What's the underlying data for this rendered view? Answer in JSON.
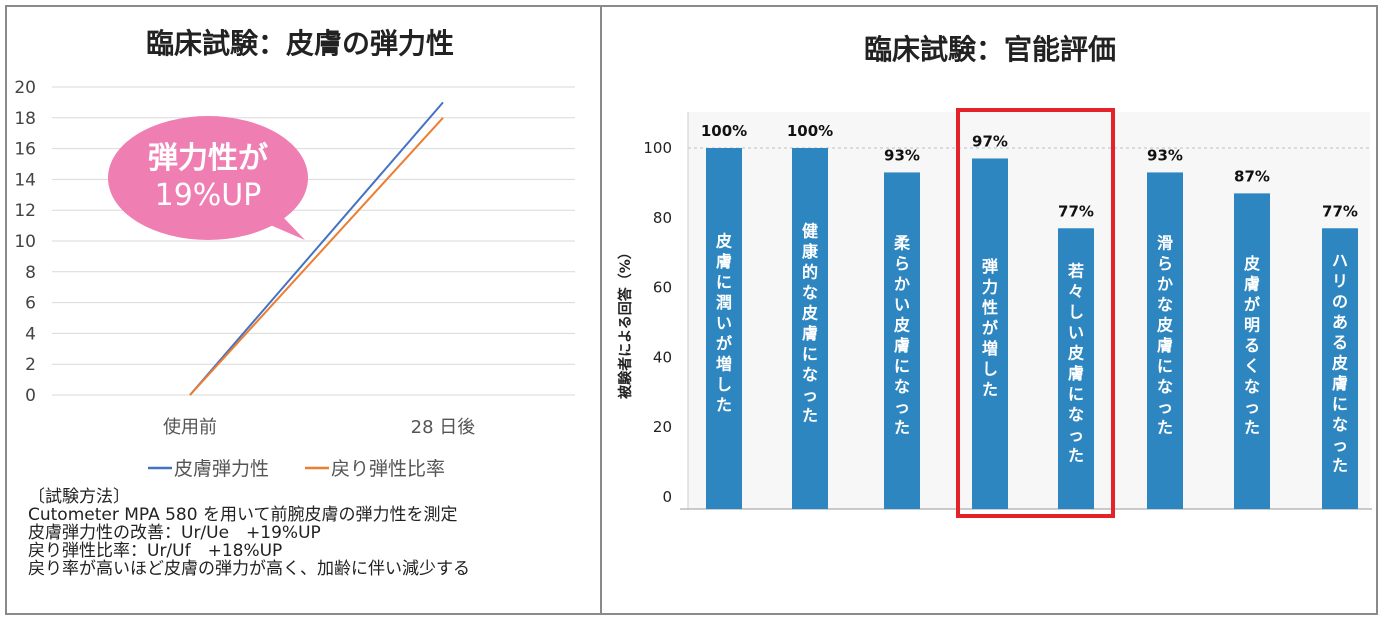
{
  "left_panel": {
    "title": "臨床試験：皮膚の弾力性",
    "callout": {
      "line1": "弾力性が",
      "line2": "19%UP",
      "color": "#ef7fb2"
    },
    "method": {
      "heading": "〔試験方法〕",
      "lines": [
        "Cutometer MPA 580 を用いて前腕皮膚の弾力性を測定",
        "皮膚弾力性の改善：Ur/Ue　+19%UP",
        "戻り弾性比率：Ur/Uf　+18%UP",
        "戻り率が高いほど皮膚の弾力が高く、加齢に伴い減少する"
      ]
    }
  },
  "right_panel": {
    "title": "臨床試験：官能評価",
    "highlight_color": "#e32229"
  },
  "chart_data": [
    {
      "type": "line",
      "categories": [
        "使用前",
        "28 日後"
      ],
      "series": [
        {
          "name": "皮膚弾力性",
          "values": [
            0,
            19
          ],
          "color": "#4472c4"
        },
        {
          "name": "戻り弾性比率",
          "values": [
            0,
            18
          ],
          "color": "#ed7d31"
        }
      ],
      "ylim": [
        0,
        20
      ],
      "yticks": [
        0,
        2,
        4,
        6,
        8,
        10,
        12,
        14,
        16,
        18,
        20
      ],
      "grid": true,
      "legend": "bottom"
    },
    {
      "type": "bar",
      "ylabel": "被験者による回答（%）",
      "ylim": [
        0,
        100
      ],
      "yticks": [
        0,
        20,
        40,
        60,
        80,
        100
      ],
      "bar_color": "#2e86c1",
      "categories": [
        "皮膚に潤いが増した",
        "健康的な皮膚になった",
        "柔らかい皮膚になった",
        "弾力性が増した",
        "若々しい皮膚になった",
        "滑らかな皮膚になった",
        "皮膚が明るくなった",
        "ハリのある皮膚になった"
      ],
      "values": [
        100,
        100,
        93,
        97,
        77,
        93,
        87,
        77
      ],
      "labels": [
        "100%",
        "100%",
        "93%",
        "97%",
        "77%",
        "93%",
        "87%",
        "77%"
      ],
      "highlighted": [
        "弾力性が増した",
        "若々しい皮膚になった"
      ]
    }
  ]
}
